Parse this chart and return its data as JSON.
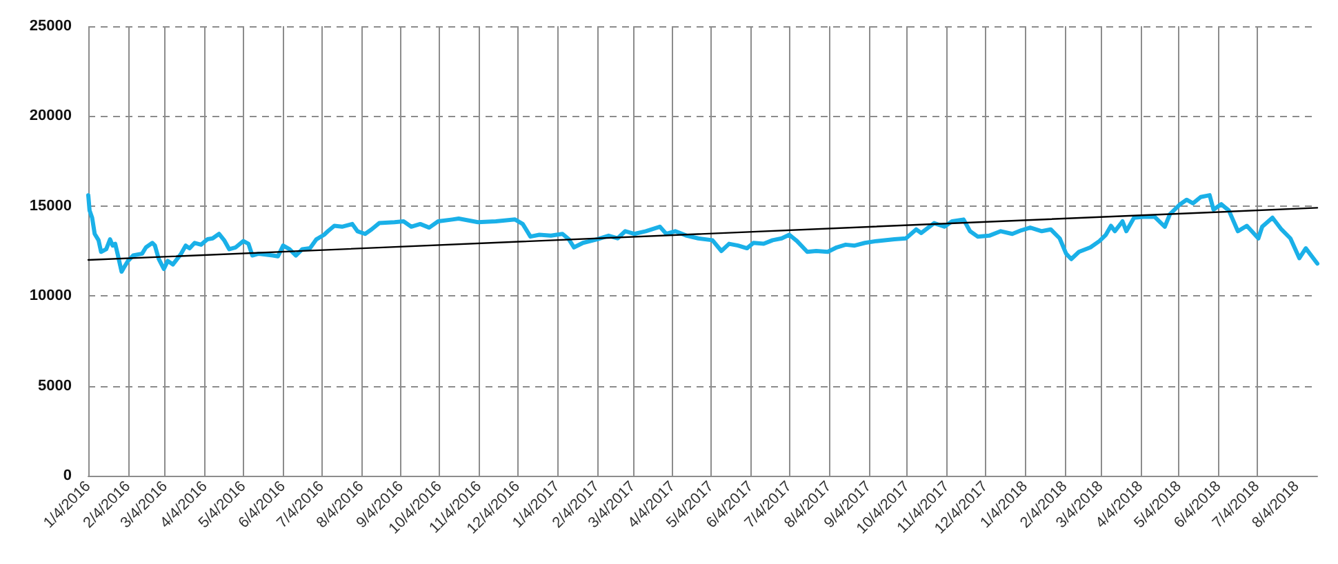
{
  "chart_data": {
    "type": "line",
    "x": [
      "2016-01-04",
      "2016-01-05",
      "2016-01-07",
      "2016-01-09",
      "2016-01-12",
      "2016-01-14",
      "2016-01-18",
      "2016-01-21",
      "2016-01-23",
      "2016-01-25",
      "2016-01-27",
      "2016-01-30",
      "2016-02-01",
      "2016-02-04",
      "2016-02-08",
      "2016-02-15",
      "2016-02-18",
      "2016-02-23",
      "2016-02-25",
      "2016-02-28",
      "2016-03-03",
      "2016-03-06",
      "2016-03-10",
      "2016-03-16",
      "2016-03-20",
      "2016-03-23",
      "2016-03-27",
      "2016-04-01",
      "2016-04-06",
      "2016-04-10",
      "2016-04-15",
      "2016-04-19",
      "2016-04-23",
      "2016-04-28",
      "2016-05-04",
      "2016-05-08",
      "2016-05-11",
      "2016-05-16",
      "2016-05-27",
      "2016-05-31",
      "2016-06-04",
      "2016-06-09",
      "2016-06-14",
      "2016-06-19",
      "2016-06-25",
      "2016-06-30",
      "2016-07-06",
      "2016-07-09",
      "2016-07-14",
      "2016-07-20",
      "2016-07-28",
      "2016-08-01",
      "2016-08-07",
      "2016-08-12",
      "2016-08-18",
      "2016-08-30",
      "2016-09-06",
      "2016-09-12",
      "2016-09-19",
      "2016-09-26",
      "2016-10-03",
      "2016-10-14",
      "2016-10-19",
      "2016-11-03",
      "2016-11-17",
      "2016-12-02",
      "2016-12-08",
      "2016-12-14",
      "2016-12-21",
      "2016-12-30",
      "2017-01-08",
      "2017-01-13",
      "2017-01-17",
      "2017-01-24",
      "2017-02-04",
      "2017-02-13",
      "2017-02-20",
      "2017-02-26",
      "2017-03-05",
      "2017-03-14",
      "2017-03-25",
      "2017-03-30",
      "2017-04-06",
      "2017-04-15",
      "2017-04-24",
      "2017-05-05",
      "2017-05-12",
      "2017-05-18",
      "2017-05-25",
      "2017-06-01",
      "2017-06-06",
      "2017-06-14",
      "2017-06-21",
      "2017-06-28",
      "2017-07-04",
      "2017-07-10",
      "2017-07-18",
      "2017-07-25",
      "2017-08-03",
      "2017-08-10",
      "2017-08-17",
      "2017-08-24",
      "2017-09-01",
      "2017-09-10",
      "2017-09-24",
      "2017-10-03",
      "2017-10-11",
      "2017-10-15",
      "2017-10-25",
      "2017-11-02",
      "2017-11-08",
      "2017-11-17",
      "2017-11-22",
      "2017-11-28",
      "2017-12-07",
      "2017-12-16",
      "2017-12-25",
      "2018-01-01",
      "2018-01-08",
      "2018-01-17",
      "2018-01-24",
      "2018-01-31",
      "2018-02-05",
      "2018-02-09",
      "2018-02-15",
      "2018-02-24",
      "2018-03-03",
      "2018-03-08",
      "2018-03-12",
      "2018-03-15",
      "2018-03-21",
      "2018-03-24",
      "2018-03-30",
      "2018-04-06",
      "2018-04-15",
      "2018-04-23",
      "2018-04-27",
      "2018-05-05",
      "2018-05-10",
      "2018-05-15",
      "2018-05-21",
      "2018-05-28",
      "2018-05-31",
      "2018-06-06",
      "2018-06-12",
      "2018-06-19",
      "2018-06-26",
      "2018-07-05",
      "2018-07-08",
      "2018-07-16",
      "2018-07-23",
      "2018-07-30",
      "2018-08-06",
      "2018-08-11",
      "2018-08-20"
    ],
    "series": [
      {
        "color": "#1ab0e8",
        "values": [
          15600,
          14750,
          14350,
          13450,
          13100,
          12450,
          12600,
          13150,
          12800,
          12900,
          12300,
          11350,
          11600,
          11950,
          12250,
          12350,
          12700,
          12950,
          12800,
          12050,
          11500,
          11950,
          11750,
          12300,
          12800,
          12650,
          12950,
          12850,
          13150,
          13200,
          13450,
          13100,
          12600,
          12700,
          13050,
          12900,
          12250,
          12350,
          12250,
          12200,
          12800,
          12600,
          12250,
          12600,
          12650,
          13150,
          13400,
          13600,
          13900,
          13850,
          14000,
          13600,
          13450,
          13700,
          14050,
          14100,
          14150,
          13850,
          14000,
          13800,
          14150,
          14250,
          14300,
          14100,
          14150,
          14250,
          14000,
          13300,
          13400,
          13350,
          13450,
          13150,
          12700,
          12950,
          13150,
          13350,
          13200,
          13600,
          13450,
          13600,
          13850,
          13450,
          13600,
          13350,
          13200,
          13100,
          12500,
          12900,
          12800,
          12650,
          12950,
          12900,
          13100,
          13200,
          13400,
          13050,
          12450,
          12500,
          12450,
          12700,
          12850,
          12800,
          12950,
          13050,
          13150,
          13200,
          13700,
          13500,
          14050,
          13850,
          14150,
          14250,
          13600,
          13300,
          13350,
          13600,
          13450,
          13650,
          13800,
          13600,
          13700,
          13200,
          12350,
          12050,
          12450,
          12700,
          13050,
          13400,
          13900,
          13600,
          14150,
          13600,
          14350,
          14400,
          14400,
          13850,
          14550,
          15100,
          15350,
          15150,
          15500,
          15600,
          14800,
          15100,
          14750,
          13600,
          13900,
          13200,
          13850,
          14350,
          13700,
          13200,
          12100,
          12650,
          11800
        ]
      },
      {
        "type": "line",
        "x": [
          "2016-01-04",
          "2018-08-20"
        ],
        "color": "#000000",
        "values": [
          12000,
          14900
        ]
      }
    ],
    "xlim": [
      "2016-01-04",
      "2018-08-20"
    ],
    "xticks": [
      {
        "value": "2016-01-04",
        "label": "1/4/2016"
      },
      {
        "value": "2016-02-04",
        "label": "2/4/2016"
      },
      {
        "value": "2016-03-04",
        "label": "3/4/2016"
      },
      {
        "value": "2016-04-04",
        "label": "4/4/2016"
      },
      {
        "value": "2016-05-04",
        "label": "5/4/2016"
      },
      {
        "value": "2016-06-04",
        "label": "6/4/2016"
      },
      {
        "value": "2016-07-04",
        "label": "7/4/2016"
      },
      {
        "value": "2016-08-04",
        "label": "8/4/2016"
      },
      {
        "value": "2016-09-04",
        "label": "9/4/2016"
      },
      {
        "value": "2016-10-04",
        "label": "10/4/2016"
      },
      {
        "value": "2016-11-04",
        "label": "11/4/2016"
      },
      {
        "value": "2016-12-04",
        "label": "12/4/2016"
      },
      {
        "value": "2017-01-04",
        "label": "1/4/2017"
      },
      {
        "value": "2017-02-04",
        "label": "2/4/2017"
      },
      {
        "value": "2017-03-04",
        "label": "3/4/2017"
      },
      {
        "value": "2017-04-04",
        "label": "4/4/2017"
      },
      {
        "value": "2017-05-04",
        "label": "5/4/2017"
      },
      {
        "value": "2017-06-04",
        "label": "6/4/2017"
      },
      {
        "value": "2017-07-04",
        "label": "7/4/2017"
      },
      {
        "value": "2017-08-04",
        "label": "8/4/2017"
      },
      {
        "value": "2017-09-04",
        "label": "9/4/2017"
      },
      {
        "value": "2017-10-04",
        "label": "10/4/2017"
      },
      {
        "value": "2017-11-04",
        "label": "11/4/2017"
      },
      {
        "value": "2017-12-04",
        "label": "12/4/2017"
      },
      {
        "value": "2018-01-04",
        "label": "1/4/2018"
      },
      {
        "value": "2018-02-04",
        "label": "2/4/2018"
      },
      {
        "value": "2018-03-04",
        "label": "3/4/2018"
      },
      {
        "value": "2018-04-04",
        "label": "4/4/2018"
      },
      {
        "value": "2018-05-04",
        "label": "5/4/2018"
      },
      {
        "value": "2018-06-04",
        "label": "6/4/2018"
      },
      {
        "value": "2018-07-04",
        "label": "7/4/2018"
      },
      {
        "value": "2018-08-04",
        "label": "8/4/2018"
      }
    ],
    "ylim": [
      0,
      25000
    ],
    "yticks": [
      0,
      5000,
      10000,
      15000,
      20000,
      25000
    ],
    "grid": true,
    "marker": "none",
    "line_style": "solid"
  }
}
